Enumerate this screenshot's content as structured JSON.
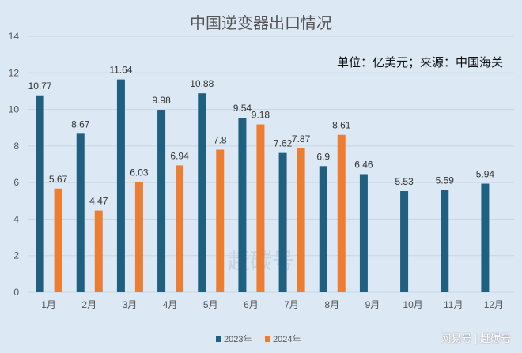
{
  "chart_data": {
    "type": "bar",
    "title": "中国逆变器出口情况",
    "subtitle": "单位：亿美元；来源：中国海关",
    "categories": [
      "1月",
      "2月",
      "3月",
      "4月",
      "5月",
      "6月",
      "7月",
      "8月",
      "9月",
      "10月",
      "11月",
      "12月"
    ],
    "series": [
      {
        "name": "2023年",
        "color": "#1f5f7f",
        "values": [
          10.77,
          8.67,
          11.64,
          9.98,
          10.88,
          9.54,
          7.62,
          6.9,
          6.46,
          5.53,
          5.59,
          5.94
        ]
      },
      {
        "name": "2024年",
        "color": "#ed7d31",
        "values": [
          5.67,
          4.47,
          6.03,
          6.94,
          7.8,
          9.18,
          7.87,
          8.61,
          null,
          null,
          null,
          null
        ]
      }
    ],
    "ylim": [
      0,
      14
    ],
    "yticks": [
      0,
      2,
      4,
      6,
      8,
      10,
      12,
      14
    ],
    "grid": true,
    "legend": "bottom",
    "center_watermark": "赶碳号"
  },
  "watermark": "网易号 | 赶碳号"
}
